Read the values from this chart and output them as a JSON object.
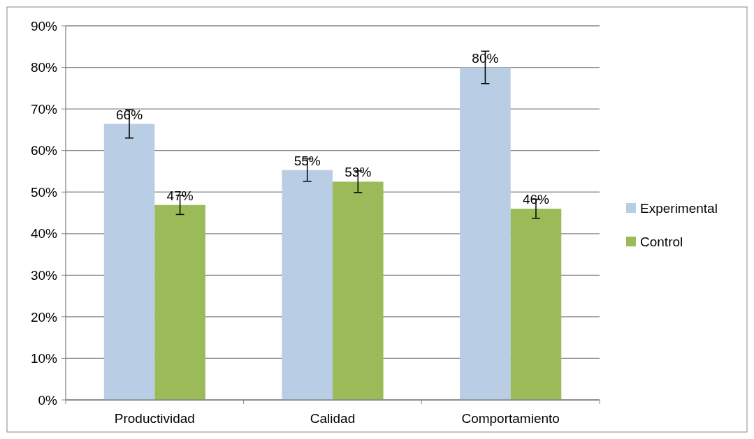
{
  "chart_data": {
    "type": "bar",
    "categories": [
      "Productividad",
      "Calidad",
      "Comportamiento"
    ],
    "series": [
      {
        "name": "Experimental",
        "color": "#b9cde5",
        "values": [
          66.4,
          55.3,
          80.0
        ],
        "errors": [
          3.4,
          2.7,
          3.9
        ],
        "value_labels": [
          "66%",
          "55%",
          "80%"
        ]
      },
      {
        "name": "Control",
        "color": "#9bbb59",
        "values": [
          46.9,
          52.5,
          46.0
        ],
        "errors": [
          2.3,
          2.6,
          2.3
        ],
        "value_labels": [
          "47%",
          "53%",
          "46%"
        ]
      }
    ],
    "ylim": [
      0,
      90
    ],
    "yticks": [
      {
        "value": 0,
        "label": "0%"
      },
      {
        "value": 10,
        "label": "10%"
      },
      {
        "value": 20,
        "label": "20%"
      },
      {
        "value": 30,
        "label": "30%"
      },
      {
        "value": 40,
        "label": "40%"
      },
      {
        "value": 50,
        "label": "50%"
      },
      {
        "value": 60,
        "label": "60%"
      },
      {
        "value": 70,
        "label": "70%"
      },
      {
        "value": 80,
        "label": "80%"
      },
      {
        "value": 90,
        "label": "90%"
      }
    ],
    "grid": "y",
    "legend": "right"
  }
}
